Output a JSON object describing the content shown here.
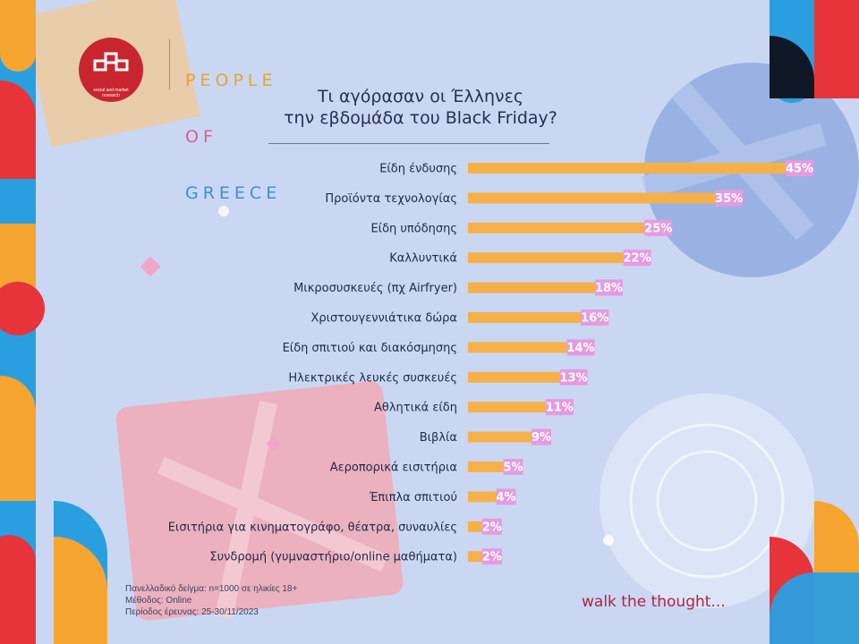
{
  "brand": {
    "logo_subtext": "social and market research",
    "name_line1": "PEOPLE",
    "name_line2": "OF",
    "name_line3": "GREECE"
  },
  "chart_data": {
    "type": "bar",
    "orientation": "horizontal",
    "title_line1": "Τι αγόρασαν οι Έλληνες",
    "title_line2": "την εβδομάδα του Black Friday?",
    "categories": [
      "Είδη ένδυσης",
      "Προϊόντα τεχνολογίας",
      "Είδη υπόδησης",
      "Καλλυντικά",
      "Μικροσυσκευές (πχ Airfryer)",
      "Χριστουγεννιάτικα δώρα",
      "Είδη σπιτιού και διακόσμησης",
      "Ηλεκτρικές λευκές συσκευές",
      "Αθλητικά είδη",
      "Βιβλία",
      "Αεροπορικά εισιτήρια",
      "Έπιπλα σπιτιού",
      "Εισιτήρια για κινηματογράφο, θέατρα, συναυλίες",
      "Συνδρομή (γυμναστήριο/online μαθήματα)"
    ],
    "values": [
      45,
      35,
      25,
      22,
      18,
      16,
      14,
      13,
      11,
      9,
      5,
      4,
      2,
      2
    ],
    "labels": [
      "45%",
      "35%",
      "25%",
      "22%",
      "18%",
      "16%",
      "14%",
      "13%",
      "11%",
      "9%",
      "5%",
      "4%",
      "2%",
      "2%"
    ],
    "unit": "%",
    "xlim": [
      0,
      45
    ],
    "grid": false,
    "legend": "none",
    "colors": {
      "bar": "#f6b04a",
      "label_bg": "#e59be0",
      "label_text": "#ffffff"
    }
  },
  "footnote": {
    "sample": "Πανελλαδικό δείγμα: n=1000 σε ηλικίες 18+",
    "method": "Μέθοδος: Online",
    "period": "Περίοδος έρευνας: 25-30/11/2023"
  },
  "tagline": "walk the thought..."
}
